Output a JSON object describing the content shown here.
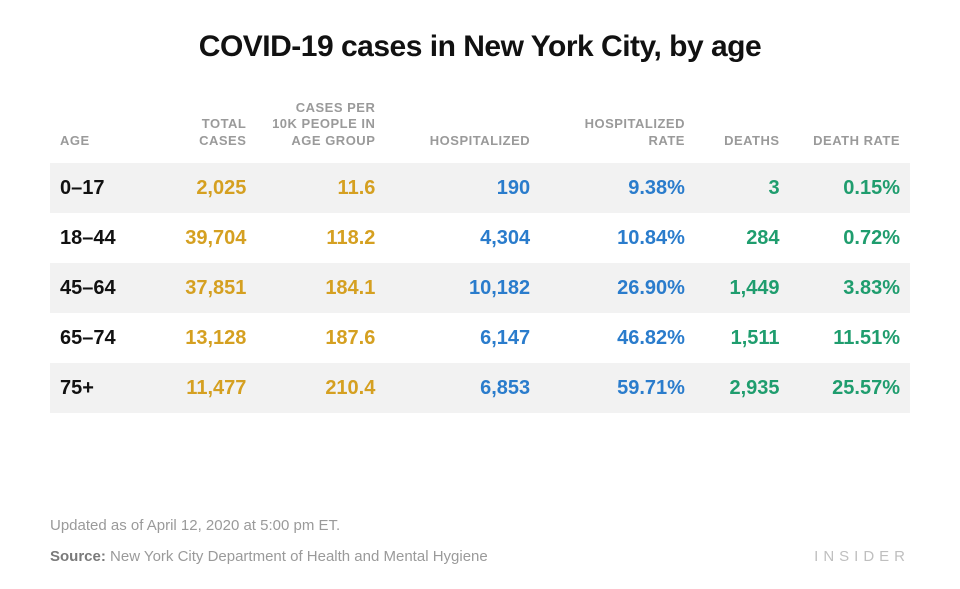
{
  "title": "COVID-19 cases in New York City, by age",
  "table": {
    "type": "table",
    "columns": [
      {
        "key": "age",
        "label": "AGE",
        "align": "left",
        "color": "#111111",
        "header_color": "#9a9a9a"
      },
      {
        "key": "total_cases",
        "label": "TOTAL CASES",
        "align": "right",
        "color": "#d5a021",
        "header_color": "#9a9a9a"
      },
      {
        "key": "per_10k",
        "label": "CASES PER 10K PEOPLE IN AGE GROUP",
        "align": "right",
        "color": "#d5a021",
        "header_color": "#9a9a9a"
      },
      {
        "key": "hospitalized",
        "label": "HOSPITALIZED",
        "align": "right",
        "color": "#2a7ccc",
        "header_color": "#9a9a9a"
      },
      {
        "key": "hosp_rate",
        "label": "HOSPITALIZED RATE",
        "align": "right",
        "color": "#2a7ccc",
        "header_color": "#9a9a9a"
      },
      {
        "key": "deaths",
        "label": "DEATHS",
        "align": "right",
        "color": "#1f9d6e",
        "header_color": "#9a9a9a"
      },
      {
        "key": "death_rate",
        "label": "DEATH RATE",
        "align": "right",
        "color": "#1f9d6e",
        "header_color": "#9a9a9a"
      }
    ],
    "rows": [
      {
        "age": "0–17",
        "total_cases": "2,025",
        "per_10k": "11.6",
        "hospitalized": "190",
        "hosp_rate": "9.38%",
        "deaths": "3",
        "death_rate": "0.15%"
      },
      {
        "age": "18–44",
        "total_cases": "39,704",
        "per_10k": "118.2",
        "hospitalized": "4,304",
        "hosp_rate": "10.84%",
        "deaths": "284",
        "death_rate": "0.72%"
      },
      {
        "age": "45–64",
        "total_cases": "37,851",
        "per_10k": "184.1",
        "hospitalized": "10,182",
        "hosp_rate": "26.90%",
        "deaths": "1,449",
        "death_rate": "3.83%"
      },
      {
        "age": "65–74",
        "total_cases": "13,128",
        "per_10k": "187.6",
        "hospitalized": "6,147",
        "hosp_rate": "46.82%",
        "deaths": "1,511",
        "death_rate": "11.51%"
      },
      {
        "age": "75+",
        "total_cases": "11,477",
        "per_10k": "210.4",
        "hospitalized": "6,853",
        "hosp_rate": "59.71%",
        "deaths": "2,935",
        "death_rate": "25.57%"
      }
    ],
    "row_stripe_colors": [
      "#f2f2f2",
      "#ffffff"
    ],
    "header_fontsize_pt": 10,
    "cell_fontsize_pt": 15,
    "font_weight": 800,
    "background_color": "#ffffff"
  },
  "updated_text": "Updated as of April 12, 2020 at 5:00 pm ET.",
  "source_label": "Source:",
  "source_text": "New York City Department of Health and Mental Hygiene",
  "brand": "INSIDER",
  "colors": {
    "title": "#111111",
    "header_text": "#9a9a9a",
    "age_text": "#111111",
    "yellow": "#d5a021",
    "blue": "#2a7ccc",
    "green": "#1f9d6e",
    "muted": "#9a9a9a",
    "brand": "#bfbfbf",
    "stripe_odd": "#f2f2f2",
    "stripe_even": "#ffffff",
    "background": "#ffffff"
  }
}
